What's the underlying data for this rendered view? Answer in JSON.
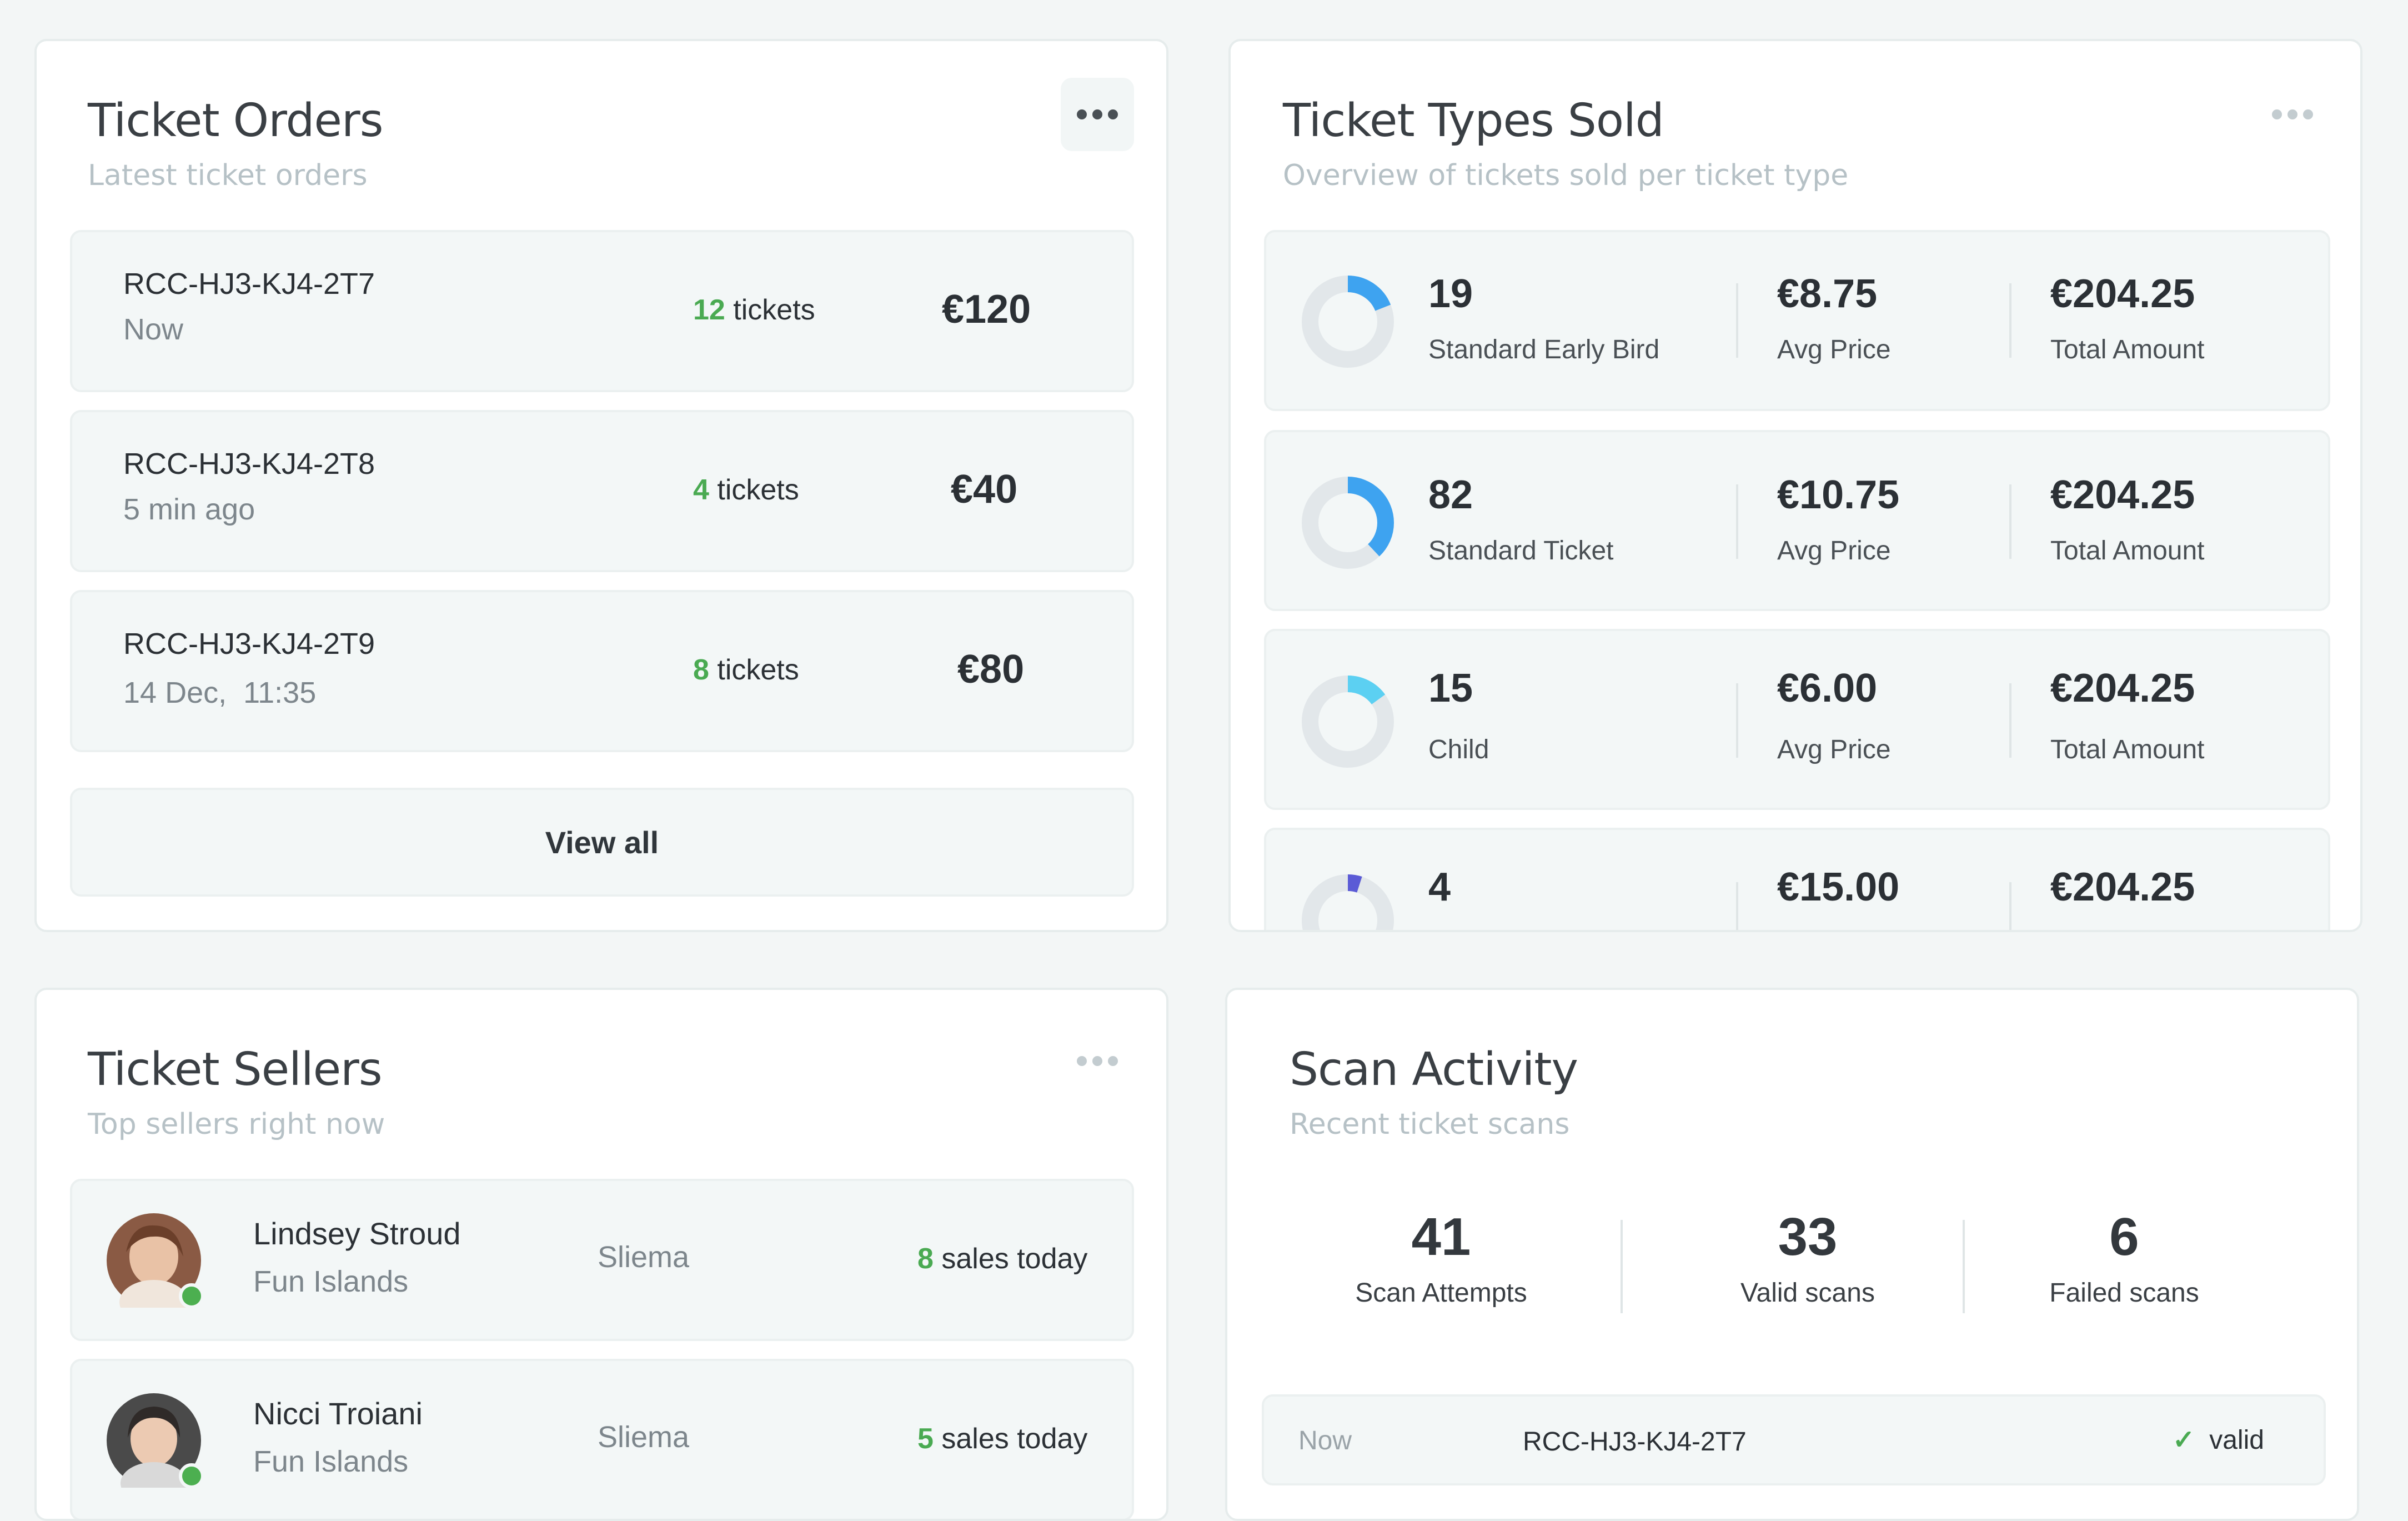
{
  "orders": {
    "title": "Ticket Orders",
    "subtitle": "Latest ticket orders",
    "items": [
      {
        "code": "RCC-HJ3-KJ4-2T7",
        "time": "Now",
        "qty": "12",
        "qty_label": "tickets",
        "amount": "€120"
      },
      {
        "code": "RCC-HJ3-KJ4-2T8",
        "time": "5 min ago",
        "qty": "4",
        "qty_label": "tickets",
        "amount": "€40"
      },
      {
        "code": "RCC-HJ3-KJ4-2T9",
        "time": "14 Dec,  11:35",
        "qty": "8",
        "qty_label": "tickets",
        "amount": "€80"
      }
    ],
    "view_all": "View all"
  },
  "types": {
    "title": "Ticket Types Sold",
    "subtitle": "Overview of tickets sold per ticket type",
    "items": [
      {
        "count": "19",
        "name": "Standard Early Bird",
        "avg": "€8.75",
        "avg_label": "Avg Price",
        "total": "€204.25",
        "total_label": "Total Amount",
        "share": 0.19,
        "color": "#3ea3f0"
      },
      {
        "count": "82",
        "name": "Standard Ticket",
        "avg": "€10.75",
        "avg_label": "Avg Price",
        "total": "€204.25",
        "total_label": "Total Amount",
        "share": 0.38,
        "color": "#3ea3f0"
      },
      {
        "count": "15",
        "name": "Child",
        "avg": "€6.00",
        "avg_label": "Avg Price",
        "total": "€204.25",
        "total_label": "Total Amount",
        "share": 0.15,
        "color": "#5cd0f2"
      },
      {
        "count": "4",
        "name": "",
        "avg": "€15.00",
        "avg_label": "",
        "total": "€204.25",
        "total_label": "",
        "share": 0.05,
        "color": "#5b5bd6"
      }
    ]
  },
  "sellers": {
    "title": "Ticket Sellers",
    "subtitle": "Top sellers right now",
    "items": [
      {
        "name": "Lindsey Stroud",
        "company": "Fun Islands",
        "location": "Sliema",
        "sales": "8",
        "sales_label": "sales today"
      },
      {
        "name": "Nicci Troiani",
        "company": "Fun Islands",
        "location": "Sliema",
        "sales": "5",
        "sales_label": "sales today"
      }
    ]
  },
  "scans": {
    "title": "Scan Activity",
    "subtitle": "Recent ticket scans",
    "stats": [
      {
        "value": "41",
        "label": "Scan Attempts"
      },
      {
        "value": "33",
        "label": "Valid scans"
      },
      {
        "value": "6",
        "label": "Failed scans"
      }
    ],
    "recent": [
      {
        "time": "Now",
        "code": "RCC-HJ3-KJ4-2T7",
        "status": "valid"
      }
    ]
  },
  "colors": {
    "accent_green": "#4aaa52",
    "online": "#4caf50"
  }
}
